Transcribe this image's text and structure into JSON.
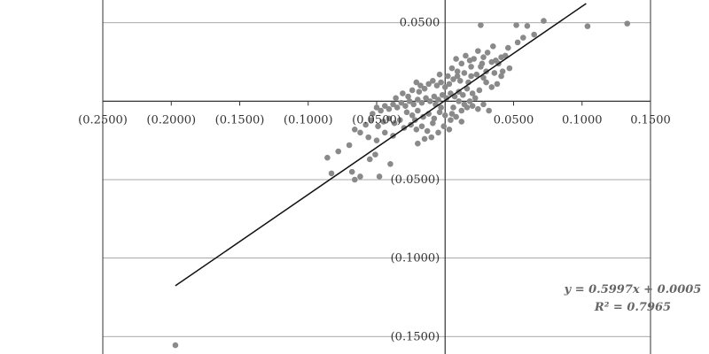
{
  "chart_data": {
    "type": "scatter",
    "title": "",
    "xlabel": "",
    "ylabel": "",
    "xlim": [
      -0.25,
      0.15
    ],
    "ylim": [
      -0.16,
      0.06
    ],
    "x_ticks": [
      -0.25,
      -0.2,
      -0.15,
      -0.1,
      -0.05,
      0.05,
      0.1,
      0.15
    ],
    "x_tick_labels": [
      "(0.2500)",
      "(0.2000)",
      "(0.1500)",
      "(0.1000)",
      "(0.0500)",
      "0.0500",
      "0.1000",
      "0.1500"
    ],
    "y_ticks": [
      0.05,
      -0.05,
      -0.1,
      -0.15
    ],
    "y_tick_labels": [
      "0.0500",
      "(0.0500)",
      "(0.1000)",
      "(0.1500)"
    ],
    "grid": "horizontal",
    "point_color": "#8a8a8a",
    "line_color": "#111111",
    "trendline": {
      "slope": 0.5997,
      "intercept": 0.0005,
      "x_range": [
        -0.197,
        0.103
      ],
      "equation_label": "y = 0.5997x + 0.0005",
      "r2_label": "R² = 0.7965"
    },
    "points": [
      [
        -0.197,
        -0.1555
      ],
      [
        0.133,
        0.0495
      ],
      [
        0.104,
        0.0478
      ],
      [
        0.072,
        0.0512
      ],
      [
        0.06,
        0.048
      ],
      [
        0.052,
        0.0485
      ],
      [
        0.026,
        0.0485
      ],
      [
        0.065,
        0.0425
      ],
      [
        0.057,
        0.0405
      ],
      [
        0.053,
        0.0375
      ],
      [
        0.046,
        0.034
      ],
      [
        0.041,
        0.028
      ],
      [
        0.037,
        0.026
      ],
      [
        0.034,
        0.025
      ],
      [
        0.031,
        0.031
      ],
      [
        0.028,
        0.028
      ],
      [
        0.024,
        0.032
      ],
      [
        0.021,
        0.027
      ],
      [
        0.018,
        0.026
      ],
      [
        0.015,
        0.029
      ],
      [
        0.012,
        0.024
      ],
      [
        0.008,
        0.027
      ],
      [
        0.005,
        0.021
      ],
      [
        0.026,
        0.022
      ],
      [
        0.03,
        0.019
      ],
      [
        0.036,
        0.018
      ],
      [
        0.042,
        0.019
      ],
      [
        0.047,
        0.021
      ],
      [
        0.023,
        0.017
      ],
      [
        0.019,
        0.016
      ],
      [
        0.014,
        0.018
      ],
      [
        0.011,
        0.013
      ],
      [
        0.009,
        0.016
      ],
      [
        0.006,
        0.014
      ],
      [
        0.003,
        0.011
      ],
      [
        0.0,
        0.009
      ],
      [
        -0.003,
        0.012
      ],
      [
        -0.006,
        0.01
      ],
      [
        -0.009,
        0.013
      ],
      [
        -0.012,
        0.011
      ],
      [
        -0.015,
        0.008
      ],
      [
        -0.018,
        0.01
      ],
      [
        -0.021,
        0.012
      ],
      [
        -0.024,
        0.007
      ],
      [
        0.03,
        0.012
      ],
      [
        0.034,
        0.009
      ],
      [
        0.038,
        0.011
      ],
      [
        0.025,
        0.007
      ],
      [
        0.02,
        0.005
      ],
      [
        0.016,
        0.008
      ],
      [
        0.013,
        0.004
      ],
      [
        0.01,
        0.006
      ],
      [
        0.007,
        0.003
      ],
      [
        0.004,
        0.005
      ],
      [
        0.001,
        0.002
      ],
      [
        -0.002,
        0.004
      ],
      [
        -0.005,
        0.001
      ],
      [
        -0.008,
        0.003
      ],
      [
        -0.011,
        0.0
      ],
      [
        -0.014,
        0.002
      ],
      [
        -0.017,
        -0.001
      ],
      [
        -0.02,
        0.001
      ],
      [
        -0.023,
        -0.002
      ],
      [
        -0.026,
        0.0
      ],
      [
        -0.029,
        -0.003
      ],
      [
        -0.032,
        -0.001
      ],
      [
        -0.035,
        -0.004
      ],
      [
        -0.038,
        -0.002
      ],
      [
        -0.041,
        -0.005
      ],
      [
        -0.044,
        -0.003
      ],
      [
        -0.047,
        -0.006
      ],
      [
        -0.05,
        -0.004
      ],
      [
        -0.053,
        -0.008
      ],
      [
        -0.028,
        -0.007
      ],
      [
        -0.024,
        -0.009
      ],
      [
        -0.02,
        -0.006
      ],
      [
        -0.016,
        -0.01
      ],
      [
        -0.012,
        -0.008
      ],
      [
        -0.008,
        -0.011
      ],
      [
        -0.004,
        -0.007
      ],
      [
        0.0,
        -0.009
      ],
      [
        0.004,
        -0.012
      ],
      [
        0.008,
        -0.01
      ],
      [
        0.012,
        -0.006
      ],
      [
        0.016,
        -0.004
      ],
      [
        0.02,
        -0.003
      ],
      [
        0.024,
        -0.005
      ],
      [
        0.028,
        -0.002
      ],
      [
        0.032,
        -0.006
      ],
      [
        0.022,
        0.002
      ],
      [
        0.018,
        0.0
      ],
      [
        0.014,
        -0.002
      ],
      [
        0.01,
        0.0
      ],
      [
        -0.003,
        -0.004
      ],
      [
        -0.007,
        -0.002
      ],
      [
        -0.033,
        -0.012
      ],
      [
        -0.037,
        -0.014
      ],
      [
        -0.041,
        -0.011
      ],
      [
        -0.045,
        -0.013
      ],
      [
        -0.049,
        -0.016
      ],
      [
        -0.054,
        -0.012
      ],
      [
        -0.058,
        -0.015
      ],
      [
        -0.062,
        -0.02
      ],
      [
        -0.066,
        -0.018
      ],
      [
        -0.03,
        -0.017
      ],
      [
        -0.025,
        -0.015
      ],
      [
        -0.021,
        -0.018
      ],
      [
        -0.017,
        -0.016
      ],
      [
        -0.013,
        -0.019
      ],
      [
        -0.009,
        -0.014
      ],
      [
        -0.005,
        -0.02
      ],
      [
        -0.001,
        -0.016
      ],
      [
        0.003,
        -0.018
      ],
      [
        -0.044,
        -0.02
      ],
      [
        -0.038,
        -0.022
      ],
      [
        -0.056,
        -0.023
      ],
      [
        -0.05,
        -0.025
      ],
      [
        -0.07,
        -0.028
      ],
      [
        -0.078,
        -0.032
      ],
      [
        -0.086,
        -0.036
      ],
      [
        -0.083,
        -0.046
      ],
      [
        -0.068,
        -0.045
      ],
      [
        -0.066,
        -0.05
      ],
      [
        -0.062,
        -0.048
      ],
      [
        -0.048,
        -0.048
      ],
      [
        -0.04,
        -0.04
      ],
      [
        -0.051,
        -0.034
      ],
      [
        -0.055,
        -0.037
      ],
      [
        -0.02,
        -0.027
      ],
      [
        -0.015,
        -0.024
      ],
      [
        -0.01,
        -0.023
      ],
      [
        0.005,
        -0.008
      ],
      [
        0.039,
        0.024
      ],
      [
        0.044,
        0.029
      ],
      [
        0.035,
        0.035
      ],
      [
        0.027,
        0.024
      ],
      [
        0.019,
        0.022
      ],
      [
        0.009,
        0.019
      ],
      [
        0.002,
        0.016
      ],
      [
        -0.004,
        0.017
      ],
      [
        -0.027,
        0.003
      ],
      [
        -0.031,
        0.005
      ],
      [
        -0.036,
        0.002
      ],
      [
        -0.019,
        0.006
      ],
      [
        0.006,
        -0.004
      ],
      [
        0.012,
        -0.013
      ],
      [
        -0.022,
        -0.012
      ],
      [
        0.028,
        0.015
      ],
      [
        0.041,
        0.016
      ],
      [
        0.017,
        0.012
      ]
    ]
  }
}
